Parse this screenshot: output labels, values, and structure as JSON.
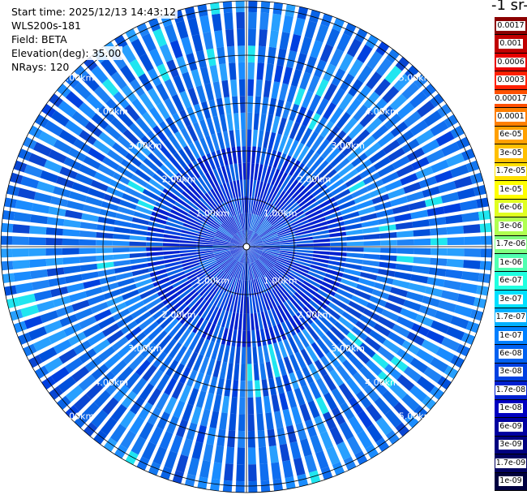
{
  "info": {
    "start_time": "Start time: 2025/12/13 14:43:12",
    "instrument": "WLS200s-181",
    "field": "Field: BETA",
    "elevation": "Elevation(deg): 35.00",
    "nrays": "NRays: 120"
  },
  "colorbar_title": "-1 sr-",
  "chart_data": {
    "type": "heatmap",
    "subtype": "ppi-polar-scan",
    "field": "BETA",
    "nrays": 120,
    "elevation_deg": 35.0,
    "range_rings_km": [
      1,
      2,
      3,
      4,
      5
    ],
    "range_ring_labels": [
      "1.00km",
      "2.00km",
      "3.00km",
      "4.00km",
      "5.00km"
    ],
    "max_range_km": 5.2,
    "scale": "log",
    "colorbar_levels": [
      "0.0017",
      "0.001",
      "0.0006",
      "0.0003",
      "0.00017",
      "0.0001",
      "6e-05",
      "3e-05",
      "1.7e-05",
      "1e-05",
      "6e-06",
      "3e-06",
      "1.7e-06",
      "1e-06",
      "6e-07",
      "3e-07",
      "1.7e-07",
      "1e-07",
      "6e-08",
      "3e-08",
      "1.7e-08",
      "1e-08",
      "6e-09",
      "3e-09",
      "1.7e-09",
      "1e-09"
    ],
    "colorbar_colors": [
      "#8b0000",
      "#c00000",
      "#e80000",
      "#ff2000",
      "#ff5000",
      "#ff7f00",
      "#ffa000",
      "#ffc000",
      "#ffe000",
      "#ffff00",
      "#e0ff20",
      "#b0ff50",
      "#80ff80",
      "#50ffb0",
      "#20ffe0",
      "#00e0ff",
      "#00b0ff",
      "#0080ff",
      "#0060f0",
      "#0040e0",
      "#0020d0",
      "#0000c0",
      "#0000a0",
      "#000080",
      "#000060",
      "#000040"
    ],
    "dominant_value_range": [
      "1e-08",
      "1e-07"
    ]
  }
}
